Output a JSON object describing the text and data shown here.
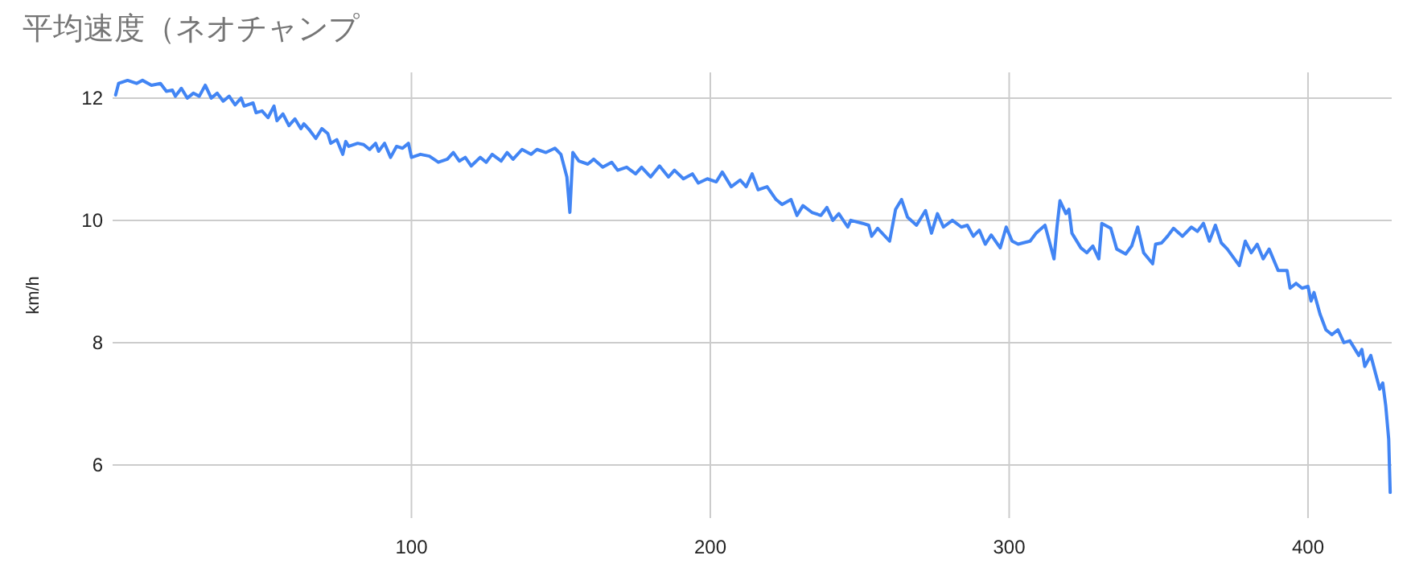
{
  "chart_data": {
    "type": "line",
    "title": "平均速度（ネオチャンプ",
    "ylabel": "km/h",
    "xlim": [
      0,
      428
    ],
    "ylim": [
      5.13,
      12.42
    ],
    "xticks": [
      100,
      200,
      300,
      400
    ],
    "yticks": [
      6,
      8,
      10,
      12
    ],
    "grid": true,
    "series": [
      {
        "color": "#4285f4",
        "x": [
          1,
          2,
          5,
          8,
          10,
          13,
          16,
          18,
          20,
          21,
          23,
          25,
          27,
          29,
          31,
          33,
          35,
          37,
          39,
          41,
          43,
          44,
          47,
          48,
          50,
          52,
          54,
          55,
          57,
          59,
          61,
          63,
          64,
          66,
          68,
          70,
          72,
          73,
          75,
          77,
          78,
          79,
          82,
          84,
          86,
          88,
          89,
          91,
          93,
          95,
          97,
          99,
          100,
          103,
          106,
          109,
          112,
          114,
          116,
          118,
          120,
          123,
          125,
          127,
          130,
          132,
          134,
          137,
          140,
          142,
          145,
          148,
          150,
          152,
          153,
          154,
          156,
          159,
          161,
          164,
          167,
          169,
          172,
          175,
          177,
          180,
          183,
          186,
          188,
          191,
          194,
          196,
          199,
          202,
          204,
          207,
          210,
          212,
          214,
          216,
          219,
          222,
          224,
          227,
          229,
          231,
          234,
          237,
          239,
          241,
          243,
          246,
          247,
          251,
          253,
          254,
          256,
          260,
          262,
          264,
          266,
          269,
          272,
          274,
          276,
          278,
          281,
          284,
          286,
          288,
          290,
          292,
          294,
          297,
          299,
          301,
          303,
          307,
          309,
          312,
          315,
          316,
          317,
          319,
          320,
          321,
          324,
          326,
          328,
          330,
          331,
          334,
          336,
          339,
          341,
          343,
          345,
          348,
          349,
          351,
          353,
          355,
          358,
          361,
          363,
          365,
          367,
          369,
          371,
          373,
          377,
          379,
          381,
          383,
          385,
          387,
          390,
          393,
          394,
          396,
          398,
          400,
          401,
          402,
          404,
          406,
          408,
          410,
          412,
          414,
          417,
          418,
          419,
          421,
          424,
          425,
          426,
          427,
          427.5
        ],
        "values": [
          12.05,
          12.24,
          12.29,
          12.24,
          12.29,
          12.21,
          12.24,
          12.11,
          12.13,
          12.03,
          12.16,
          12.0,
          12.08,
          12.03,
          12.21,
          12.0,
          12.08,
          11.95,
          12.03,
          11.89,
          12.0,
          11.87,
          11.92,
          11.76,
          11.79,
          11.68,
          11.87,
          11.63,
          11.74,
          11.55,
          11.66,
          11.5,
          11.58,
          11.47,
          11.34,
          11.5,
          11.42,
          11.26,
          11.32,
          11.08,
          11.29,
          11.21,
          11.26,
          11.24,
          11.16,
          11.26,
          11.13,
          11.26,
          11.03,
          11.21,
          11.18,
          11.26,
          11.03,
          11.08,
          11.05,
          10.95,
          11.0,
          11.11,
          10.97,
          11.03,
          10.89,
          11.03,
          10.95,
          11.08,
          10.97,
          11.11,
          11.0,
          11.16,
          11.08,
          11.16,
          11.11,
          11.18,
          11.08,
          10.71,
          10.13,
          11.11,
          10.97,
          10.92,
          11.0,
          10.87,
          10.95,
          10.82,
          10.87,
          10.76,
          10.87,
          10.71,
          10.89,
          10.71,
          10.82,
          10.68,
          10.76,
          10.61,
          10.68,
          10.63,
          10.79,
          10.55,
          10.66,
          10.55,
          10.76,
          10.5,
          10.55,
          10.34,
          10.26,
          10.34,
          10.08,
          10.24,
          10.13,
          10.08,
          10.21,
          10.0,
          10.11,
          9.89,
          10.0,
          9.95,
          9.92,
          9.74,
          9.87,
          9.66,
          10.18,
          10.34,
          10.05,
          9.92,
          10.16,
          9.79,
          10.11,
          9.89,
          10.0,
          9.89,
          9.92,
          9.74,
          9.84,
          9.61,
          9.76,
          9.55,
          9.89,
          9.66,
          9.61,
          9.66,
          9.79,
          9.92,
          9.37,
          9.89,
          10.32,
          10.11,
          10.18,
          9.79,
          9.55,
          9.47,
          9.58,
          9.37,
          9.95,
          9.87,
          9.53,
          9.45,
          9.58,
          9.89,
          9.47,
          9.29,
          9.61,
          9.63,
          9.74,
          9.87,
          9.74,
          9.89,
          9.82,
          9.95,
          9.66,
          9.92,
          9.63,
          9.53,
          9.26,
          9.66,
          9.47,
          9.61,
          9.37,
          9.53,
          9.18,
          9.18,
          8.89,
          8.97,
          8.89,
          8.92,
          8.68,
          8.82,
          8.47,
          8.21,
          8.13,
          8.21,
          8.0,
          8.03,
          7.79,
          7.89,
          7.61,
          7.79,
          7.24,
          7.34,
          6.97,
          6.42,
          5.55
        ]
      }
    ]
  }
}
